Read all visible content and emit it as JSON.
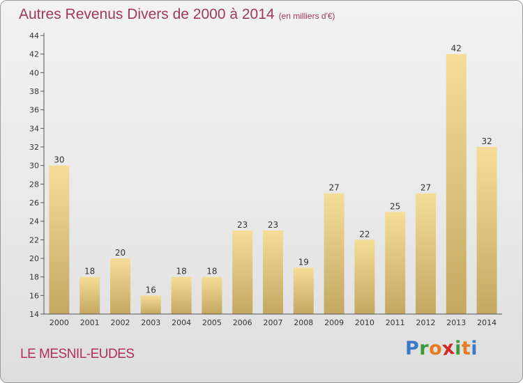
{
  "header": {
    "title": "Autres Revenus Divers de 2000 à 2014",
    "subtitle": "(en milliers d'€)"
  },
  "footer": {
    "location": "LE MESNIL-EUDES",
    "logo_letters": [
      "P",
      "r",
      "o",
      "x",
      "i",
      "t",
      "i"
    ]
  },
  "colors": {
    "title": "#a03a5a",
    "bar_top": "#f5dd98",
    "bar_bottom": "#c4a862",
    "logo": [
      "#3a78c8",
      "#3a9a3a",
      "#e87a20",
      "#d02828",
      "#3a9a3a",
      "#e87a20",
      "#3a78c8"
    ]
  },
  "chart_data": {
    "type": "bar",
    "title": "Autres Revenus Divers de 2000 à 2014",
    "subtitle": "(en milliers d'€)",
    "categories": [
      "2000",
      "2001",
      "2002",
      "2003",
      "2004",
      "2005",
      "2006",
      "2007",
      "2008",
      "2009",
      "2010",
      "2011",
      "2012",
      "2013",
      "2014"
    ],
    "values": [
      30,
      18,
      20,
      16,
      18,
      18,
      23,
      23,
      19,
      27,
      22,
      25,
      27,
      42,
      32
    ],
    "xlabel": "",
    "ylabel": "",
    "ylim": [
      14,
      44
    ],
    "yticks": [
      14,
      16,
      18,
      20,
      22,
      24,
      26,
      28,
      30,
      32,
      34,
      36,
      38,
      40,
      42,
      44
    ],
    "grid": false,
    "legend": "none"
  }
}
